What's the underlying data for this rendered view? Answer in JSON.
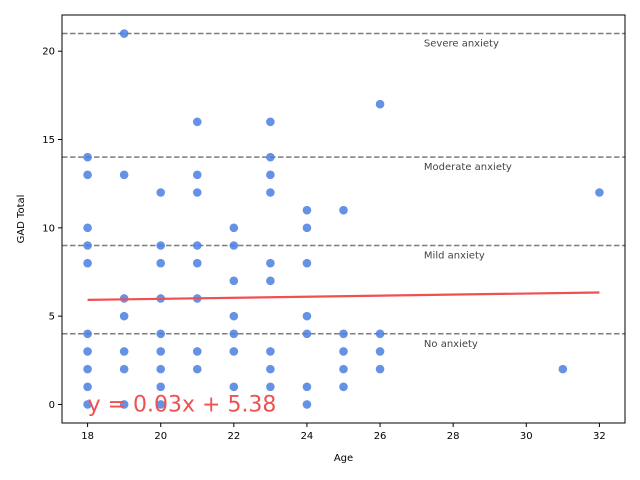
{
  "chart_data": {
    "type": "scatter",
    "title": "",
    "xlabel": "Age",
    "ylabel": "GAD Total",
    "xlim": [
      17.3,
      32.7
    ],
    "ylim": [
      -1.05,
      22.05
    ],
    "xticks": [
      18,
      20,
      22,
      24,
      26,
      28,
      30,
      32
    ],
    "yticks": [
      0,
      5,
      10,
      15,
      20
    ],
    "grid": false,
    "colors": {
      "points": "#4a7fe0",
      "trend": "#f05050",
      "reference": "#7f7f7f"
    },
    "points": [
      [
        18,
        0
      ],
      [
        18,
        1
      ],
      [
        18,
        2
      ],
      [
        18,
        3
      ],
      [
        18,
        4
      ],
      [
        18,
        8
      ],
      [
        18,
        9
      ],
      [
        18,
        10
      ],
      [
        18,
        13
      ],
      [
        18,
        14
      ],
      [
        19,
        0
      ],
      [
        19,
        2
      ],
      [
        19,
        3
      ],
      [
        19,
        5
      ],
      [
        19,
        6
      ],
      [
        19,
        13
      ],
      [
        19,
        21
      ],
      [
        20,
        0
      ],
      [
        20,
        1
      ],
      [
        20,
        2
      ],
      [
        20,
        3
      ],
      [
        20,
        4
      ],
      [
        20,
        6
      ],
      [
        20,
        8
      ],
      [
        20,
        9
      ],
      [
        20,
        12
      ],
      [
        21,
        2
      ],
      [
        21,
        3
      ],
      [
        21,
        6
      ],
      [
        21,
        8
      ],
      [
        21,
        9
      ],
      [
        21,
        12
      ],
      [
        21,
        13
      ],
      [
        21,
        16
      ],
      [
        22,
        1
      ],
      [
        22,
        3
      ],
      [
        22,
        4
      ],
      [
        22,
        5
      ],
      [
        22,
        7
      ],
      [
        22,
        9
      ],
      [
        22,
        10
      ],
      [
        23,
        1
      ],
      [
        23,
        2
      ],
      [
        23,
        3
      ],
      [
        23,
        7
      ],
      [
        23,
        8
      ],
      [
        23,
        12
      ],
      [
        23,
        13
      ],
      [
        23,
        14
      ],
      [
        23,
        16
      ],
      [
        24,
        0
      ],
      [
        24,
        1
      ],
      [
        24,
        4
      ],
      [
        24,
        5
      ],
      [
        24,
        8
      ],
      [
        24,
        10
      ],
      [
        24,
        11
      ],
      [
        25,
        1
      ],
      [
        25,
        2
      ],
      [
        25,
        3
      ],
      [
        25,
        4
      ],
      [
        25,
        11
      ],
      [
        26,
        2
      ],
      [
        26,
        3
      ],
      [
        26,
        4
      ],
      [
        26,
        17
      ],
      [
        31,
        2
      ],
      [
        32,
        12
      ]
    ],
    "trend_line": {
      "slope": 0.03,
      "intercept": 5.38,
      "x_range": [
        18,
        32
      ],
      "equation": "y = 0.03x + 5.38"
    },
    "reference_lines": [
      {
        "y": 4,
        "label": "No anxiety"
      },
      {
        "y": 9,
        "label": "Mild anxiety"
      },
      {
        "y": 14,
        "label": "Moderate anxiety"
      },
      {
        "y": 21,
        "label": "Severe anxiety"
      }
    ]
  }
}
